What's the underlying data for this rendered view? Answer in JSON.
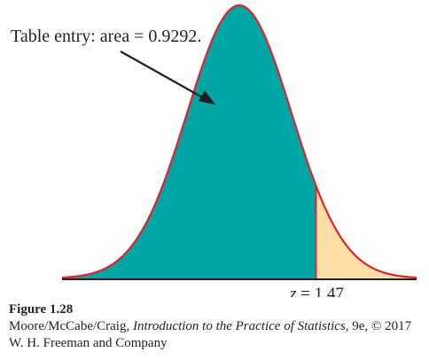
{
  "figure": {
    "annotation": "Table entry: area = 0.9292.",
    "z_label": {
      "var": "z",
      "rest": " = 1.47"
    }
  },
  "chart_data": {
    "type": "area",
    "curve": "standard normal density",
    "z_value": 1.47,
    "shaded_area_left": 0.9292,
    "x_range": [
      -3.4,
      3.4
    ],
    "colors": {
      "left_fill": "#00a6a6",
      "right_fill": "#ffdfa6",
      "curve": "#e0222b",
      "axis": "#231f20",
      "arrow": "#231f20"
    }
  },
  "caption": {
    "title": "Figure 1.28",
    "authors": "Moore/McCabe/Craig, ",
    "book": "Introduction to the Practice of Statistics",
    "edition": ", 9e, © 2017 W. H. Freeman and Company"
  }
}
